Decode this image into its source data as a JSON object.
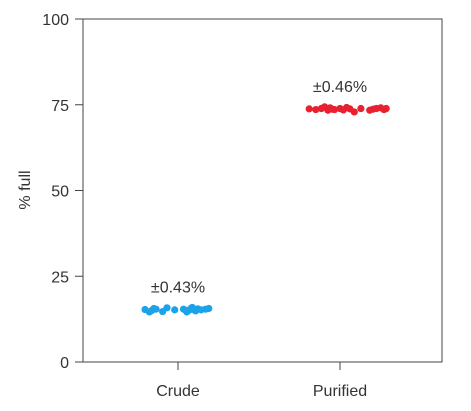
{
  "chart_data": {
    "type": "scatter",
    "ylabel": "% full",
    "ylim": [
      0,
      100
    ],
    "yticks": [
      0,
      25,
      50,
      75,
      100
    ],
    "grid": false,
    "categories": [
      "Crude",
      "Purified"
    ],
    "series": [
      {
        "category": "Crude",
        "color": "#1aa3e8",
        "annotation": "±0.43%",
        "points": [
          {
            "x": -0.3,
            "y": 15.3
          },
          {
            "x": -0.26,
            "y": 14.6
          },
          {
            "x": -0.24,
            "y": 15.0
          },
          {
            "x": -0.22,
            "y": 15.6
          },
          {
            "x": -0.2,
            "y": 15.4
          },
          {
            "x": -0.14,
            "y": 14.7
          },
          {
            "x": -0.1,
            "y": 15.8
          },
          {
            "x": -0.03,
            "y": 15.2
          },
          {
            "x": 0.05,
            "y": 15.4
          },
          {
            "x": 0.08,
            "y": 14.6
          },
          {
            "x": 0.1,
            "y": 15.1
          },
          {
            "x": 0.12,
            "y": 15.7
          },
          {
            "x": 0.14,
            "y": 15.3
          },
          {
            "x": 0.16,
            "y": 14.9
          },
          {
            "x": 0.18,
            "y": 15.5
          },
          {
            "x": 0.21,
            "y": 15.2
          },
          {
            "x": 0.25,
            "y": 15.4
          },
          {
            "x": 0.28,
            "y": 15.6
          },
          {
            "x": 0.13,
            "y": 15.9
          },
          {
            "x": 0.09,
            "y": 15.0
          }
        ]
      },
      {
        "category": "Purified",
        "color": "#e8202f",
        "annotation": "±0.46%",
        "points": [
          {
            "x": -0.28,
            "y": 73.8
          },
          {
            "x": -0.22,
            "y": 73.6
          },
          {
            "x": -0.17,
            "y": 73.9
          },
          {
            "x": -0.14,
            "y": 74.4
          },
          {
            "x": -0.11,
            "y": 73.4
          },
          {
            "x": -0.09,
            "y": 74.1
          },
          {
            "x": -0.07,
            "y": 73.7
          },
          {
            "x": 0.0,
            "y": 73.9
          },
          {
            "x": 0.03,
            "y": 73.5
          },
          {
            "x": 0.06,
            "y": 74.2
          },
          {
            "x": 0.09,
            "y": 73.8
          },
          {
            "x": 0.13,
            "y": 72.9
          },
          {
            "x": 0.19,
            "y": 73.9
          },
          {
            "x": 0.27,
            "y": 73.4
          },
          {
            "x": 0.3,
            "y": 73.7
          },
          {
            "x": 0.33,
            "y": 73.9
          },
          {
            "x": 0.37,
            "y": 74.1
          },
          {
            "x": 0.4,
            "y": 73.6
          },
          {
            "x": 0.42,
            "y": 73.9
          },
          {
            "x": -0.05,
            "y": 73.6
          }
        ]
      }
    ]
  }
}
